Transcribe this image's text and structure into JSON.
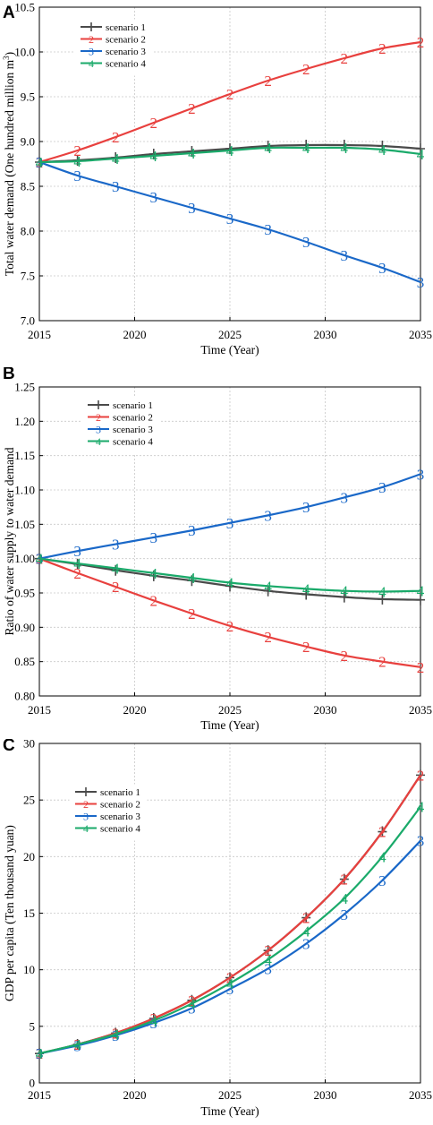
{
  "chart_data": [
    {
      "panel": "A",
      "type": "line",
      "xlabel": "Time (Year)",
      "ylabel": "Total water demand (One hundred million m",
      "ylabel_sup": "3",
      "ylabel_close": ")",
      "xlim": [
        2015,
        2035
      ],
      "ylim": [
        7.0,
        10.5
      ],
      "xticks": [
        "2015",
        "2020",
        "2025",
        "2030",
        "2035"
      ],
      "yticks": [
        "7.0",
        "7.5",
        "8.0",
        "8.5",
        "9.0",
        "9.5",
        "10.0",
        "10.5"
      ],
      "grid": true,
      "legend_position": "top-left",
      "x": [
        2015,
        2017,
        2019,
        2021,
        2023,
        2025,
        2027,
        2029,
        2031,
        2033,
        2035
      ],
      "series": [
        {
          "name": "scenario 1",
          "marker": "+",
          "color": "#4a4a4a",
          "values": [
            8.77,
            8.79,
            8.82,
            8.86,
            8.89,
            8.92,
            8.95,
            8.96,
            8.96,
            8.95,
            8.92
          ]
        },
        {
          "name": "scenario 2",
          "marker": "2",
          "color": "#e8403e",
          "values": [
            8.77,
            8.9,
            9.05,
            9.21,
            9.37,
            9.53,
            9.68,
            9.81,
            9.93,
            10.04,
            10.11
          ]
        },
        {
          "name": "scenario 3",
          "marker": "3",
          "color": "#1a68c8",
          "values": [
            8.77,
            8.62,
            8.5,
            8.38,
            8.26,
            8.14,
            8.02,
            7.88,
            7.73,
            7.59,
            7.43
          ]
        },
        {
          "name": "scenario 4",
          "marker": "4",
          "color": "#1aaa6a",
          "values": [
            8.77,
            8.78,
            8.81,
            8.84,
            8.87,
            8.9,
            8.93,
            8.93,
            8.93,
            8.91,
            8.86
          ]
        }
      ]
    },
    {
      "panel": "B",
      "type": "line",
      "xlabel": "Time (Year)",
      "ylabel": "Ratio of water supply to water demand",
      "xlim": [
        2015,
        2035
      ],
      "ylim": [
        0.8,
        1.25
      ],
      "xticks": [
        "2015",
        "2020",
        "2025",
        "2030",
        "2035"
      ],
      "yticks": [
        "0.80",
        "0.85",
        "0.90",
        "0.95",
        "1.00",
        "1.05",
        "1.10",
        "1.15",
        "1.20",
        "1.25"
      ],
      "grid": true,
      "legend_position": "top-left",
      "x": [
        2015,
        2017,
        2019,
        2021,
        2023,
        2025,
        2027,
        2029,
        2031,
        2033,
        2035
      ],
      "series": [
        {
          "name": "scenario 1",
          "marker": "+",
          "color": "#4a4a4a",
          "values": [
            1.0,
            0.992,
            0.983,
            0.975,
            0.968,
            0.96,
            0.953,
            0.948,
            0.944,
            0.941,
            0.94
          ]
        },
        {
          "name": "scenario 2",
          "marker": "2",
          "color": "#e8403e",
          "values": [
            1.0,
            0.979,
            0.959,
            0.939,
            0.92,
            0.902,
            0.886,
            0.872,
            0.859,
            0.85,
            0.842
          ]
        },
        {
          "name": "scenario 3",
          "marker": "3",
          "color": "#1a68c8",
          "values": [
            1.0,
            1.011,
            1.021,
            1.031,
            1.041,
            1.052,
            1.063,
            1.075,
            1.089,
            1.104,
            1.123
          ]
        },
        {
          "name": "scenario 4",
          "marker": "4",
          "color": "#1aaa6a",
          "values": [
            1.0,
            0.993,
            0.986,
            0.979,
            0.972,
            0.965,
            0.96,
            0.956,
            0.953,
            0.952,
            0.953
          ]
        }
      ]
    },
    {
      "panel": "C",
      "type": "line",
      "xlabel": "Time (Year)",
      "ylabel": "GDP per capita (Ten thousand yuan)",
      "xlim": [
        2015,
        2035
      ],
      "ylim": [
        0,
        30
      ],
      "xticks": [
        "2015",
        "2020",
        "2025",
        "2030",
        "2035"
      ],
      "yticks": [
        "0",
        "5",
        "10",
        "15",
        "20",
        "25",
        "30"
      ],
      "grid": true,
      "legend_position": "top-left",
      "x": [
        2015,
        2017,
        2019,
        2021,
        2023,
        2025,
        2027,
        2029,
        2031,
        2033,
        2035
      ],
      "series": [
        {
          "name": "scenario 1",
          "marker": "+",
          "color": "#4a4a4a",
          "values": [
            2.6,
            3.4,
            4.4,
            5.7,
            7.3,
            9.3,
            11.7,
            14.6,
            18.0,
            22.2,
            27.2
          ]
        },
        {
          "name": "scenario 2",
          "marker": "2",
          "color": "#e8403e",
          "values": [
            2.6,
            3.4,
            4.4,
            5.7,
            7.3,
            9.3,
            11.7,
            14.6,
            18.0,
            22.2,
            27.2
          ]
        },
        {
          "name": "scenario 3",
          "marker": "3",
          "color": "#1a68c8",
          "values": [
            2.6,
            3.3,
            4.2,
            5.3,
            6.6,
            8.3,
            10.1,
            12.3,
            14.9,
            17.9,
            21.4
          ]
        },
        {
          "name": "scenario 4",
          "marker": "4",
          "color": "#1aaa6a",
          "values": [
            2.6,
            3.4,
            4.3,
            5.5,
            7.0,
            8.8,
            10.9,
            13.4,
            16.3,
            20.0,
            24.4
          ]
        }
      ]
    }
  ]
}
